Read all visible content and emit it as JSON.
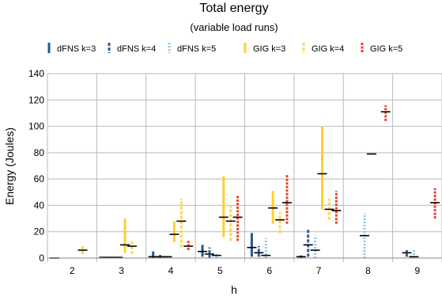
{
  "chart_data": {
    "type": "scatter",
    "title": "Total energy",
    "subtitle": "(variable load runs)",
    "xlabel": "h",
    "ylabel": "Energy (Joules)",
    "ylim": [
      0,
      140
    ],
    "yticks": [
      0,
      20,
      40,
      60,
      80,
      100,
      120,
      140
    ],
    "categories": [
      "2",
      "3",
      "4",
      "5",
      "6",
      "7",
      "8",
      "9"
    ],
    "grid": true,
    "legend_position": "top",
    "colors": {
      "dFNS k=3": "#1f5a8c",
      "dFNS k=4": "#2c5f9e",
      "dFNS k=5": "#88c8ee",
      "GIG k=3": "#ffd02a",
      "GIG k=4": "#ffd84a",
      "GIG k=5": "#e8452c",
      "mean": "#000000",
      "grid": "#b9b9b9"
    },
    "series": [
      {
        "name": "dFNS k=3",
        "style": "solid",
        "mean": [
          0,
          0.5,
          1,
          5,
          8,
          1,
          null,
          null
        ],
        "low": [
          0,
          0,
          0,
          1,
          1,
          0,
          null,
          null
        ],
        "high": [
          0,
          1,
          5,
          10,
          19,
          2,
          null,
          null
        ]
      },
      {
        "name": "dFNS k=4",
        "style": "dashed",
        "mean": [
          null,
          0.5,
          1,
          3,
          4,
          10,
          null,
          4
        ],
        "low": [
          null,
          0,
          0,
          0,
          1,
          1,
          null,
          1
        ],
        "high": [
          null,
          1,
          3,
          8,
          9,
          22,
          null,
          6
        ]
      },
      {
        "name": "dFNS k=5",
        "style": "dotted",
        "mean": [
          null,
          0.5,
          1,
          2,
          2,
          6,
          17,
          1
        ],
        "low": [
          null,
          0,
          0,
          0,
          0,
          0,
          0,
          0
        ],
        "high": [
          null,
          1,
          2,
          3,
          15,
          17,
          34,
          7
        ]
      },
      {
        "name": "GIG k=3",
        "style": "solid",
        "mean": [
          null,
          10,
          18,
          31,
          38,
          64,
          79,
          null
        ],
        "low": [
          null,
          4,
          12,
          16,
          26,
          37,
          79,
          null
        ],
        "high": [
          null,
          30,
          28,
          62,
          51,
          100,
          79,
          null
        ]
      },
      {
        "name": "GIG k=4",
        "style": "dashed",
        "mean": [
          6,
          9,
          28,
          28,
          29,
          37,
          null,
          null
        ],
        "low": [
          3,
          3,
          8,
          13,
          19,
          29,
          null,
          null
        ],
        "high": [
          9,
          14,
          45,
          40,
          35,
          45,
          null,
          null
        ]
      },
      {
        "name": "GIG k=5",
        "style": "dense-dashed",
        "mean": [
          null,
          null,
          9,
          31,
          42,
          36,
          111,
          42
        ],
        "low": [
          null,
          null,
          6,
          13,
          26,
          26,
          104,
          30
        ],
        "high": [
          null,
          null,
          13,
          48,
          63,
          51,
          116,
          53
        ]
      }
    ]
  }
}
